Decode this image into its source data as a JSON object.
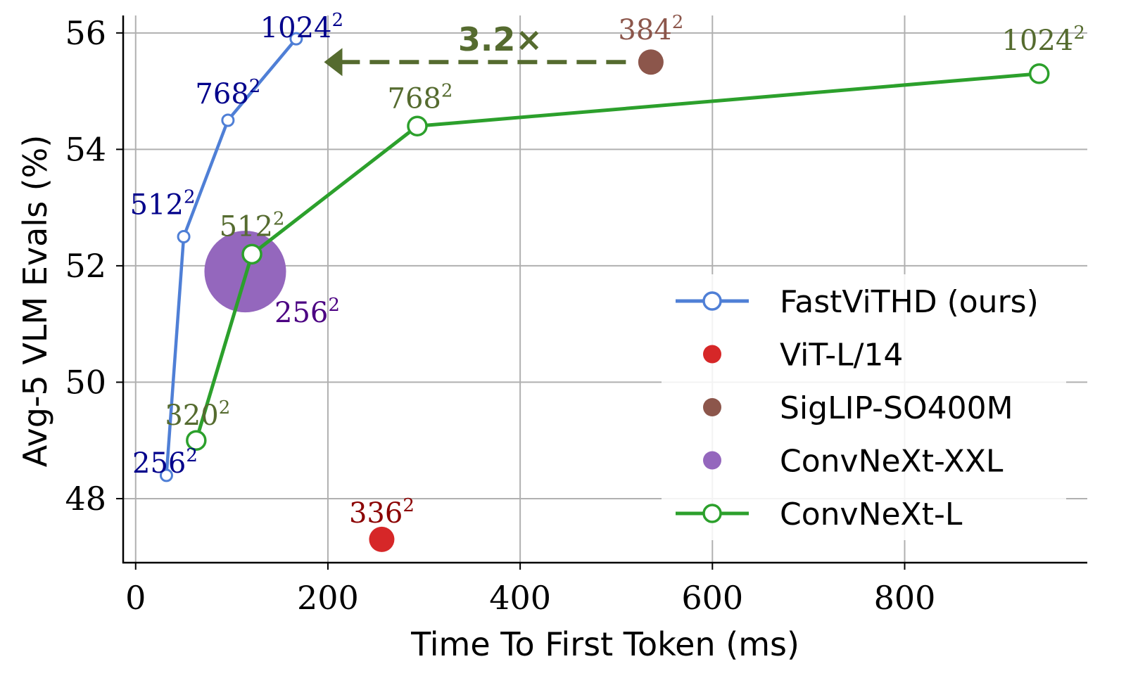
{
  "chart_data": {
    "type": "scatter",
    "xlabel": "Time To First Token (ms)",
    "ylabel": "Avg-5 VLM Evals (%)",
    "xlim": [
      -13,
      990
    ],
    "ylim": [
      46.9,
      56.3
    ],
    "xticks": [
      0,
      200,
      400,
      600,
      800
    ],
    "yticks": [
      48,
      50,
      52,
      54,
      56
    ],
    "grid": true,
    "legend": "center-right",
    "series": [
      {
        "name": "FastViTHD (ours)",
        "kind": "line-marker",
        "color": "#4f7fd6",
        "labelColor": "#00008b",
        "points": [
          {
            "x": 32,
            "y": 48.4,
            "label": "256²"
          },
          {
            "x": 50,
            "y": 52.5,
            "label": "512²"
          },
          {
            "x": 96,
            "y": 54.5,
            "label": "768²"
          },
          {
            "x": 167,
            "y": 55.9,
            "label": "1024²"
          }
        ]
      },
      {
        "name": "ViT-L/14",
        "kind": "point",
        "color": "#d62728",
        "labelColor": "#8b0000",
        "points": [
          {
            "x": 256,
            "y": 47.3,
            "label": "336²"
          }
        ]
      },
      {
        "name": "SigLIP-SO400M",
        "kind": "point",
        "color": "#8c564b",
        "labelColor": "#8c564b",
        "points": [
          {
            "x": 536,
            "y": 55.5,
            "label": "384²"
          }
        ]
      },
      {
        "name": "ConvNeXt-XXL",
        "kind": "big-point",
        "color": "#9467bd",
        "labelColor": "#4b0082",
        "points": [
          {
            "x": 114,
            "y": 51.9,
            "label": "256²"
          }
        ]
      },
      {
        "name": "ConvNeXt-L",
        "kind": "line-marker",
        "color": "#2ca02c",
        "labelColor": "#556b2f",
        "points": [
          {
            "x": 63,
            "y": 49.0,
            "label": "320²"
          },
          {
            "x": 121,
            "y": 52.2,
            "label": "512²"
          },
          {
            "x": 293,
            "y": 54.4,
            "label": "768²"
          },
          {
            "x": 940,
            "y": 55.3,
            "label": "1024²"
          }
        ]
      }
    ],
    "annotations": [
      {
        "text": "3.2×",
        "from_x": 510,
        "to_x": 196,
        "y": 55.5,
        "color": "#556b2f"
      }
    ]
  }
}
